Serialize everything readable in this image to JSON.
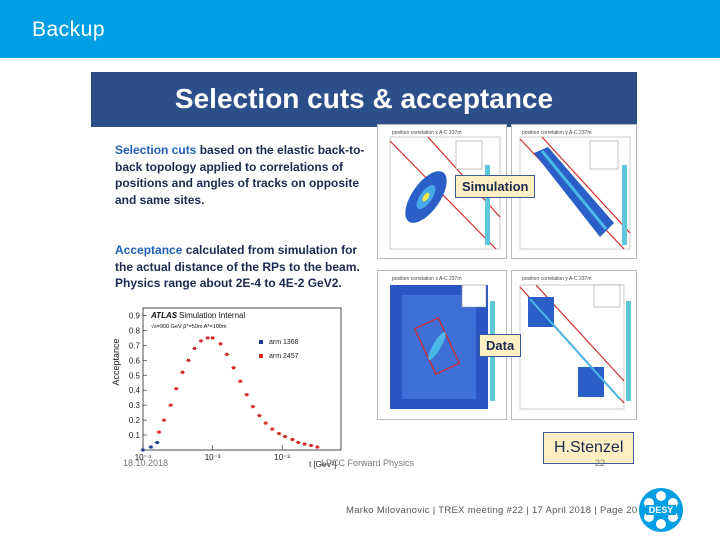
{
  "slide_title": "Backup",
  "inner": {
    "heading": "Selection cuts & acceptance",
    "para1_key": "Selection cuts",
    "para1_rest": " based on the elastic back-to-back topology applied to correlations of positions and angles of tracks on opposite and same sites.",
    "para2_key": "Acceptance",
    "para2_rest": " calculated from simulation for the actual distance of the RPs to the beam. Physics range about 2E-4 to 4E-2 GeV2.",
    "tag_simulation": "Simulation",
    "tag_data": "Data",
    "credit": "H.Stenzel",
    "footer_date": "18.10.2018",
    "footer_center": "LPCC Forward Physics",
    "footer_page": "22",
    "plot_title_1": "position correlation x A-C 237m",
    "plot_title_2": "position correlation y A-C 237m"
  },
  "chart_data": {
    "type": "scatter",
    "title": "",
    "annotation_atlas": "ATLAS",
    "annotation_sim": "Simulation Internal",
    "annotation_energy": "√s=900 GeV  β*=50m  A*=100m",
    "ylabel": "Acceptance",
    "xlabel": "t [GeV²]",
    "x_scale": "log",
    "xlim": [
      0.0001,
      0.07
    ],
    "ylim": [
      0,
      0.95
    ],
    "y_ticks": [
      "0.1",
      "0.2",
      "0.3",
      "0.4",
      "0.5",
      "0.6",
      "0.7",
      "0.8",
      "0.9"
    ],
    "x_ticks": [
      "10⁻⁴",
      "10⁻³",
      "10⁻²"
    ],
    "series": [
      {
        "name": "arm 1368",
        "color": "#1a3a8a",
        "x": [
          0.0001,
          0.00013,
          0.00016
        ],
        "y": [
          0.0,
          0.02,
          0.05
        ]
      },
      {
        "name": "arm 2457",
        "color": "#d42a2a",
        "x": [
          0.00017,
          0.0002,
          0.00025,
          0.0003,
          0.00037,
          0.00045,
          0.00055,
          0.00068,
          0.00085,
          0.001,
          0.0013,
          0.0016,
          0.002,
          0.0025,
          0.0031,
          0.0038,
          0.0047,
          0.0058,
          0.0072,
          0.009,
          0.011,
          0.014,
          0.017,
          0.021,
          0.026,
          0.032
        ],
        "y": [
          0.12,
          0.2,
          0.3,
          0.41,
          0.52,
          0.6,
          0.68,
          0.73,
          0.75,
          0.75,
          0.71,
          0.64,
          0.55,
          0.46,
          0.37,
          0.29,
          0.23,
          0.18,
          0.14,
          0.11,
          0.09,
          0.07,
          0.05,
          0.04,
          0.03,
          0.02
        ]
      }
    ]
  },
  "footer": "Marko Milovanovic | TREX meeting #22 | 17 April 2018 | Page 20",
  "logo_text": "DESY"
}
